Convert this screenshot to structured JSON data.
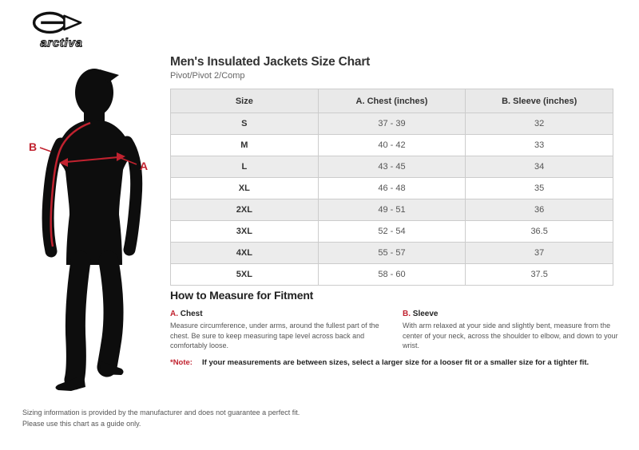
{
  "brand": {
    "logo_text": "arctiva"
  },
  "header": {
    "title": "Men's Insulated Jackets Size Chart",
    "subtitle": "Pivot/Pivot 2/Comp"
  },
  "figure": {
    "label_a": "A",
    "label_b": "B"
  },
  "size_table": {
    "columns": [
      "Size",
      "A. Chest (inches)",
      "B. Sleeve (inches)"
    ],
    "rows": [
      {
        "size": "S",
        "chest": "37 - 39",
        "sleeve": "32"
      },
      {
        "size": "M",
        "chest": "40 - 42",
        "sleeve": "33"
      },
      {
        "size": "L",
        "chest": "43 - 45",
        "sleeve": "34"
      },
      {
        "size": "XL",
        "chest": "46 - 48",
        "sleeve": "35"
      },
      {
        "size": "2XL",
        "chest": "49 - 51",
        "sleeve": "36"
      },
      {
        "size": "3XL",
        "chest": "52 - 54",
        "sleeve": "36.5"
      },
      {
        "size": "4XL",
        "chest": "55 - 57",
        "sleeve": "37"
      },
      {
        "size": "5XL",
        "chest": "58 - 60",
        "sleeve": "37.5"
      }
    ]
  },
  "measure_section": {
    "heading": "How to Measure for Fitment",
    "items": [
      {
        "key": "A.",
        "name": "Chest",
        "description": "Measure circumference, under arms, around the fullest part of the chest. Be sure to keep measuring tape level across back and comfortably loose."
      },
      {
        "key": "B.",
        "name": "Sleeve",
        "description": "With arm relaxed at your side and slightly bent, measure from the center of your neck, across the shoulder to elbow, and down to your wrist."
      }
    ],
    "note_label": "*Note:",
    "note_text": "If your measurements are between sizes, select a larger size for a looser fit or a smaller size for a tighter fit."
  },
  "footer": {
    "line1": "Sizing information is provided by the manufacturer and does not guarantee a perfect fit.",
    "line2": "Please use this chart as a guide only."
  },
  "colors": {
    "accent_red": "#c1222f",
    "table_header_bg": "#e9e9e9",
    "row_alt_bg": "#ececec",
    "border": "#cccccc"
  }
}
